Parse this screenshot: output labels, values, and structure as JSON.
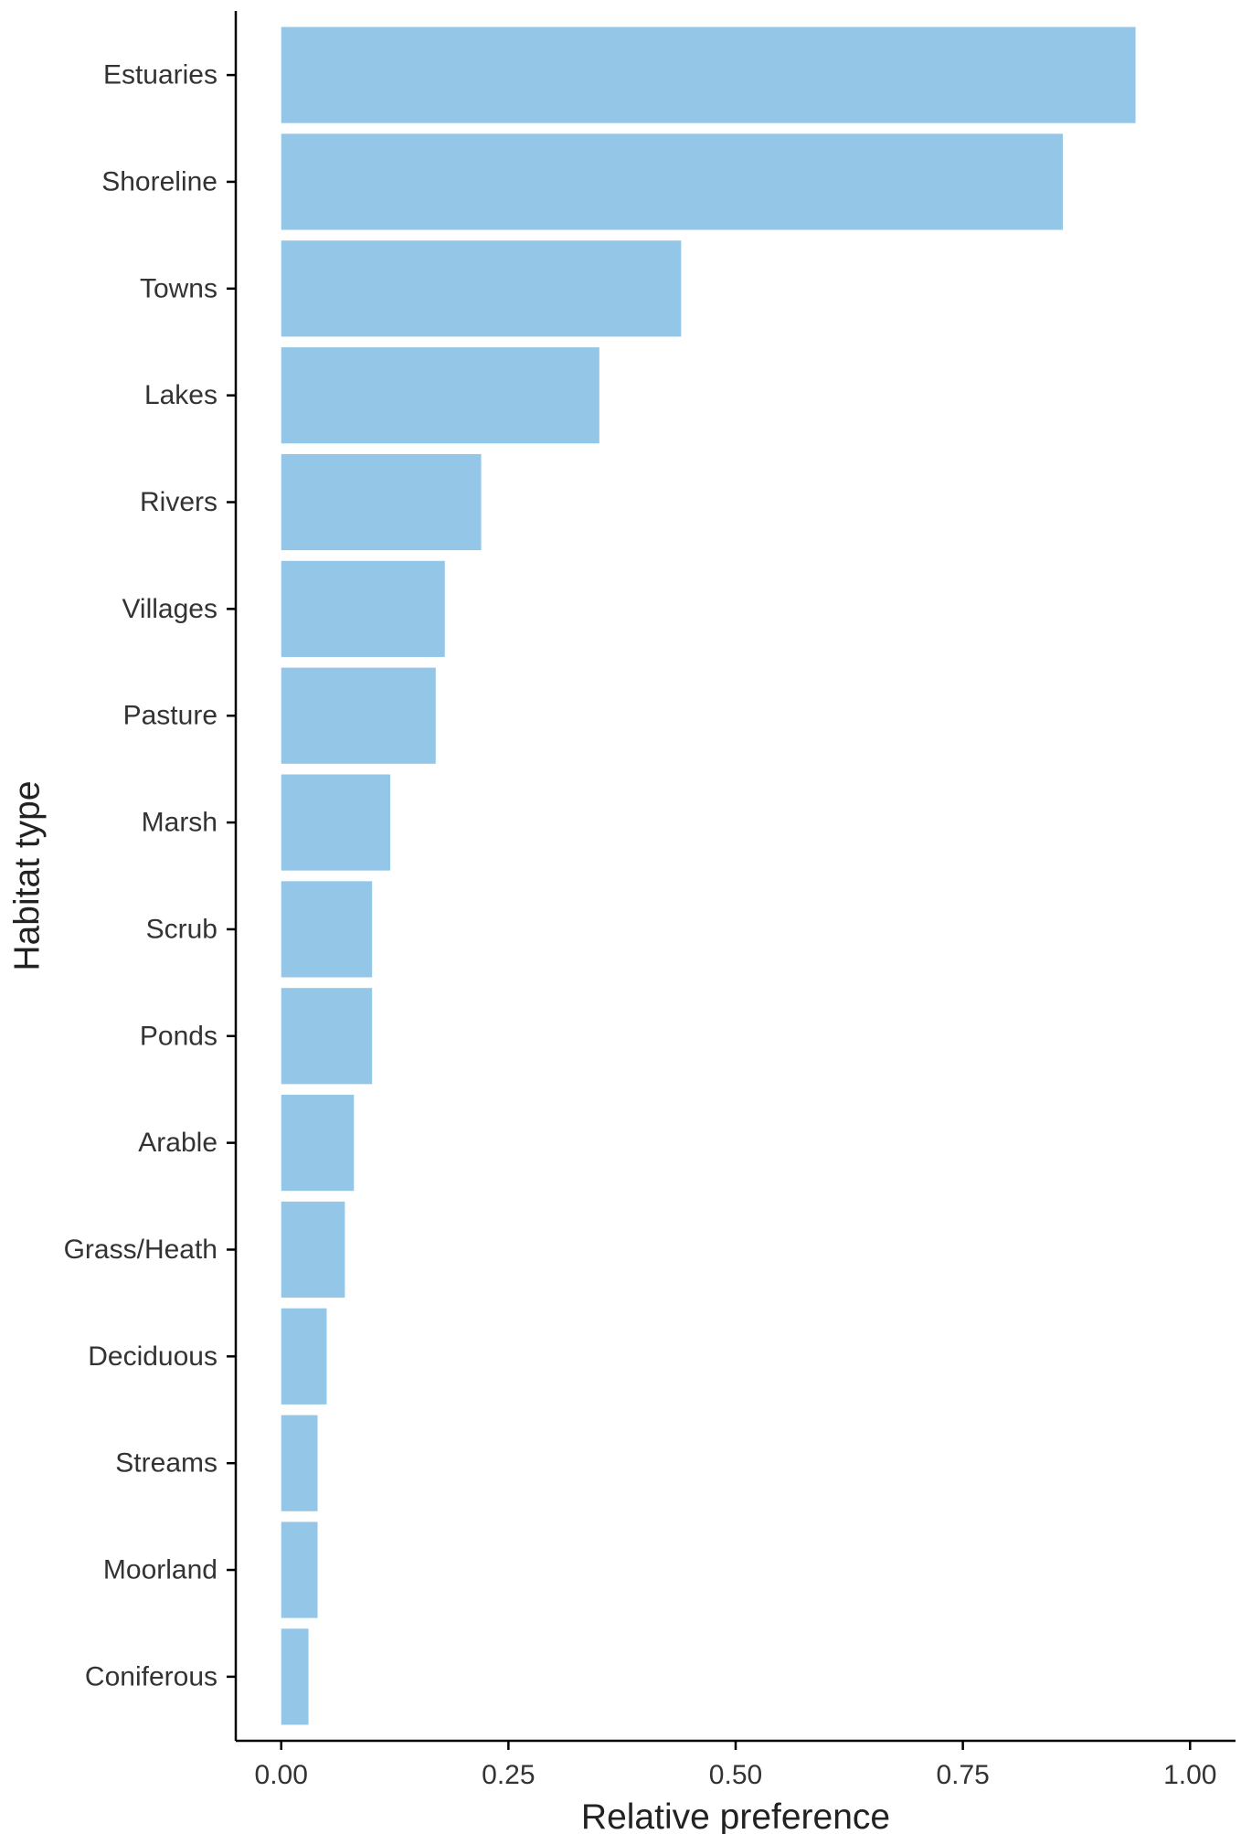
{
  "chart_data": {
    "type": "bar",
    "orientation": "horizontal",
    "categories": [
      "Estuaries",
      "Shoreline",
      "Towns",
      "Lakes",
      "Rivers",
      "Villages",
      "Pasture",
      "Marsh",
      "Scrub",
      "Ponds",
      "Arable",
      "Grass/Heath",
      "Deciduous",
      "Streams",
      "Moorland",
      "Coniferous"
    ],
    "values": [
      0.94,
      0.86,
      0.44,
      0.35,
      0.22,
      0.18,
      0.17,
      0.12,
      0.1,
      0.1,
      0.08,
      0.07,
      0.05,
      0.04,
      0.04,
      0.03
    ],
    "xlabel": "Relative preference",
    "ylabel": "Habitat type",
    "xlim": [
      -0.05,
      1.05
    ],
    "x_ticks": [
      0,
      0.25,
      0.5,
      0.75,
      1.0
    ],
    "x_tick_labels": [
      "0.00",
      "0.25",
      "0.50",
      "0.75",
      "1.00"
    ],
    "grid": false,
    "legend": "none",
    "bar_color": "#94c6e7",
    "axis_color": "#000000"
  }
}
